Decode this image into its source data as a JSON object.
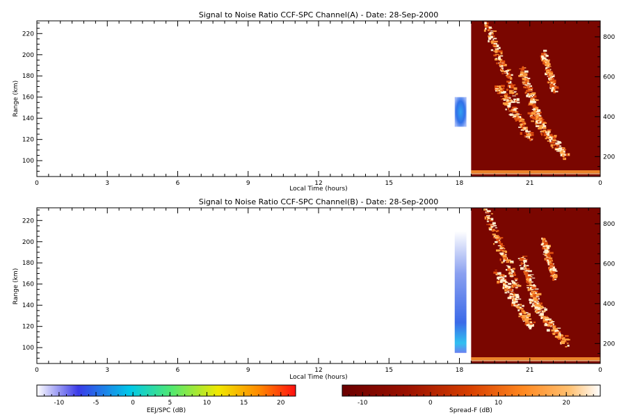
{
  "chart_data": [
    {
      "type": "heatmap",
      "title": "Signal to Noise Ratio CCF-SPC Channel(A) - Date: 28-Sep-2000",
      "xlabel": "Local Time (hours)",
      "ylabel": "Range (km)",
      "xlim": [
        0,
        24
      ],
      "ylim": [
        85,
        232
      ],
      "y2lim": [
        100,
        880
      ],
      "x_ticks": [
        "0",
        "3",
        "6",
        "9",
        "12",
        "15",
        "18",
        "21",
        "0"
      ],
      "y_ticks": [
        "100",
        "120",
        "140",
        "160",
        "180",
        "200",
        "220"
      ],
      "y2_ticks": [
        "200",
        "400",
        "600",
        "800"
      ],
      "ejj_patch": {
        "time_start": 17.8,
        "time_end": 18.3,
        "range_min": 132,
        "range_max": 160,
        "snr_db": -6
      },
      "spread_f": {
        "time_start": 18.5,
        "time_end": 24.0
      }
    },
    {
      "type": "heatmap",
      "title": "Signal to Noise Ratio CCF-SPC Channel(B) - Date: 28-Sep-2000",
      "xlabel": "Local Time (hours)",
      "ylabel": "Range (km)",
      "xlim": [
        0,
        24
      ],
      "ylim": [
        85,
        232
      ],
      "y2lim": [
        100,
        880
      ],
      "x_ticks": [
        "0",
        "3",
        "6",
        "9",
        "12",
        "15",
        "18",
        "21",
        "0"
      ],
      "y_ticks": [
        "100",
        "120",
        "140",
        "160",
        "180",
        "200",
        "220"
      ],
      "y2_ticks": [
        "200",
        "400",
        "600",
        "800"
      ],
      "ejj_patch": {
        "time_start": 17.8,
        "time_end": 18.3,
        "range_min": 95,
        "range_max": 210,
        "snr_db": -7
      },
      "spread_f": {
        "time_start": 18.5,
        "time_end": 24.0
      }
    }
  ],
  "colorbars": [
    {
      "label": "EEJ/SPC (dB)",
      "min": -13,
      "max": 22,
      "ticks": [
        "-10",
        "-5",
        "0",
        "5",
        "10",
        "15",
        "20"
      ],
      "tick_values": [
        -10,
        -5,
        0,
        5,
        10,
        15,
        20
      ],
      "colors": [
        "#ffffff",
        "#3a3ae8",
        "#00c8e8",
        "#50e870",
        "#f0e800",
        "#ff8800",
        "#ff1010"
      ]
    },
    {
      "label": "Spread-F (dB)",
      "min": -13,
      "max": 25,
      "ticks": [
        "-10",
        "0",
        "10",
        "20"
      ],
      "tick_values": [
        -10,
        0,
        10,
        20
      ],
      "colors": [
        "#6a0000",
        "#9a1000",
        "#d84000",
        "#ff8820",
        "#ffc070",
        "#ffffff"
      ]
    }
  ]
}
